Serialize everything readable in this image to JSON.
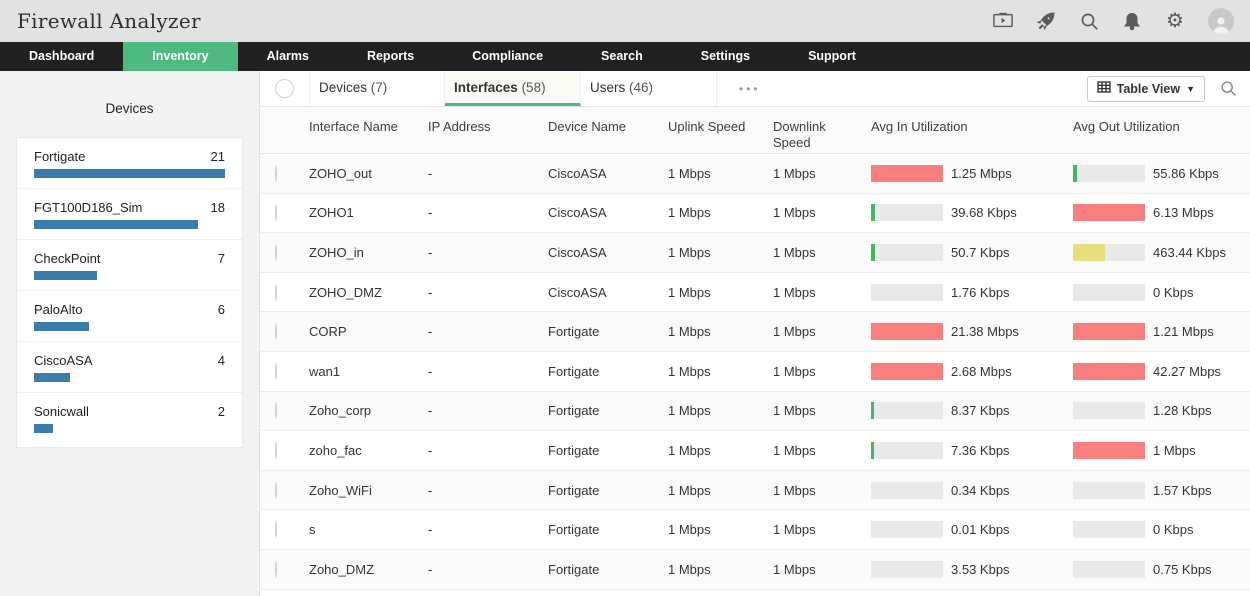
{
  "app": {
    "title": "Firewall Analyzer"
  },
  "header": {
    "icons": [
      "presentation-icon",
      "rocket-icon",
      "search-icon",
      "bell-icon",
      "gear-icon",
      "user-avatar"
    ]
  },
  "nav": {
    "items": [
      {
        "label": "Dashboard",
        "active": false
      },
      {
        "label": "Inventory",
        "active": true
      },
      {
        "label": "Alarms",
        "active": false
      },
      {
        "label": "Reports",
        "active": false
      },
      {
        "label": "Compliance",
        "active": false
      },
      {
        "label": "Search",
        "active": false
      },
      {
        "label": "Settings",
        "active": false
      },
      {
        "label": "Support",
        "active": false
      }
    ]
  },
  "sidebar": {
    "title": "Devices",
    "items": [
      {
        "name": "Fortigate",
        "count": "21",
        "bar_pct": 100
      },
      {
        "name": "FGT100D186_Sim",
        "count": "18",
        "bar_pct": 86
      },
      {
        "name": "CheckPoint",
        "count": "7",
        "bar_pct": 33
      },
      {
        "name": "PaloAlto",
        "count": "6",
        "bar_pct": 29
      },
      {
        "name": "CiscoASA",
        "count": "4",
        "bar_pct": 19
      },
      {
        "name": "Sonicwall",
        "count": "2",
        "bar_pct": 10
      }
    ]
  },
  "toolbar": {
    "tabs": [
      {
        "label": "Devices",
        "count": "(7)",
        "active": false
      },
      {
        "label": "Interfaces",
        "count": "(58)",
        "active": true
      },
      {
        "label": "Users",
        "count": "(46)",
        "active": false
      }
    ],
    "more_label": "•••",
    "view_button_label": "Table View"
  },
  "table": {
    "columns": [
      "",
      "Interface Name",
      "IP Address",
      "Device Name",
      "Uplink Speed",
      "Downlink Speed",
      "Avg In Utilization",
      "Avg Out Utilization"
    ],
    "rows": [
      {
        "name": "ZOHO_out",
        "ip": "-",
        "device": "CiscoASA",
        "uplink": "1 Mbps",
        "downlink": "1 Mbps",
        "in": {
          "pct": 100,
          "color": "red",
          "label": "1.25 Mbps"
        },
        "out": {
          "pct": 5,
          "color": "green",
          "label": "55.86 Kbps"
        }
      },
      {
        "name": "ZOHO1",
        "ip": "-",
        "device": "CiscoASA",
        "uplink": "1 Mbps",
        "downlink": "1 Mbps",
        "in": {
          "pct": 5,
          "color": "green",
          "label": "39.68 Kbps"
        },
        "out": {
          "pct": 100,
          "color": "red",
          "label": "6.13 Mbps"
        }
      },
      {
        "name": "ZOHO_in",
        "ip": "-",
        "device": "CiscoASA",
        "uplink": "1 Mbps",
        "downlink": "1 Mbps",
        "in": {
          "pct": 5,
          "color": "green",
          "label": "50.7 Kbps"
        },
        "out": {
          "pct": 45,
          "color": "yellow",
          "label": "463.44 Kbps"
        }
      },
      {
        "name": "ZOHO_DMZ",
        "ip": "-",
        "device": "CiscoASA",
        "uplink": "1 Mbps",
        "downlink": "1 Mbps",
        "in": {
          "pct": 0,
          "color": "none",
          "label": "1.76 Kbps"
        },
        "out": {
          "pct": 0,
          "color": "none",
          "label": "0 Kbps"
        }
      },
      {
        "name": "CORP",
        "ip": "-",
        "device": "Fortigate",
        "uplink": "1 Mbps",
        "downlink": "1 Mbps",
        "in": {
          "pct": 100,
          "color": "red",
          "label": "21.38 Mbps"
        },
        "out": {
          "pct": 100,
          "color": "red",
          "label": "1.21 Mbps"
        }
      },
      {
        "name": "wan1",
        "ip": "-",
        "device": "Fortigate",
        "uplink": "1 Mbps",
        "downlink": "1 Mbps",
        "in": {
          "pct": 100,
          "color": "red",
          "label": "2.68 Mbps"
        },
        "out": {
          "pct": 100,
          "color": "red",
          "label": "42.27 Mbps"
        }
      },
      {
        "name": "Zoho_corp",
        "ip": "-",
        "device": "Fortigate",
        "uplink": "1 Mbps",
        "downlink": "1 Mbps",
        "in": {
          "pct": 4,
          "color": "green",
          "label": "8.37 Kbps"
        },
        "out": {
          "pct": 0,
          "color": "none",
          "label": "1.28 Kbps"
        }
      },
      {
        "name": "zoho_fac",
        "ip": "-",
        "device": "Fortigate",
        "uplink": "1 Mbps",
        "downlink": "1 Mbps",
        "in": {
          "pct": 4,
          "color": "green",
          "label": "7.36 Kbps"
        },
        "out": {
          "pct": 100,
          "color": "red",
          "label": "1 Mbps"
        }
      },
      {
        "name": "Zoho_WiFi",
        "ip": "-",
        "device": "Fortigate",
        "uplink": "1 Mbps",
        "downlink": "1 Mbps",
        "in": {
          "pct": 0,
          "color": "none",
          "label": "0.34 Kbps"
        },
        "out": {
          "pct": 0,
          "color": "none",
          "label": "1.57 Kbps"
        }
      },
      {
        "name": "s",
        "ip": "-",
        "device": "Fortigate",
        "uplink": "1 Mbps",
        "downlink": "1 Mbps",
        "in": {
          "pct": 0,
          "color": "none",
          "label": "0.01 Kbps"
        },
        "out": {
          "pct": 0,
          "color": "none",
          "label": "0 Kbps"
        }
      },
      {
        "name": "Zoho_DMZ",
        "ip": "-",
        "device": "Fortigate",
        "uplink": "1 Mbps",
        "downlink": "1 Mbps",
        "in": {
          "pct": 0,
          "color": "none",
          "label": "3.53 Kbps"
        },
        "out": {
          "pct": 0,
          "color": "none",
          "label": "0.75 Kbps"
        }
      }
    ]
  },
  "colors": {
    "accent_green": "#4eba7f",
    "nav_bg": "#212121",
    "sidebar_bar_blue": "#3a7cab",
    "bar_red": "#f77f7f",
    "bar_green": "#42b863",
    "bar_yellow": "#e9de7e",
    "bar_track": "#e9e9e9"
  }
}
